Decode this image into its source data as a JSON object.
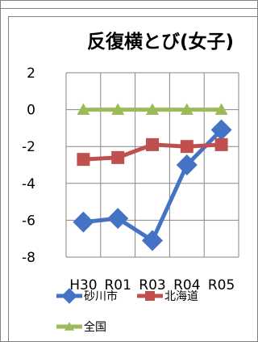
{
  "chart_data": {
    "type": "line",
    "title": "反復横とび(女子)",
    "xlabel": "",
    "ylabel": "",
    "categories": [
      "H30",
      "R01",
      "R03",
      "R04",
      "R05"
    ],
    "ylim": [
      -8,
      2
    ],
    "yticks": [
      2,
      0,
      -2,
      -4,
      -6,
      -8
    ],
    "grid": true,
    "legend_position": "bottom",
    "series": [
      {
        "name": "砂川市",
        "values": [
          -6.1,
          -5.9,
          -7.1,
          -3.0,
          -1.1
        ],
        "color": "#4472c4",
        "marker": "diamond"
      },
      {
        "name": "北海道",
        "values": [
          -2.7,
          -2.6,
          -1.9,
          -2.0,
          -1.9
        ],
        "color": "#c0504d",
        "marker": "square"
      },
      {
        "name": "全国",
        "values": [
          0,
          0,
          0,
          0,
          0
        ],
        "color": "#9bbb59",
        "marker": "triangle"
      }
    ]
  }
}
